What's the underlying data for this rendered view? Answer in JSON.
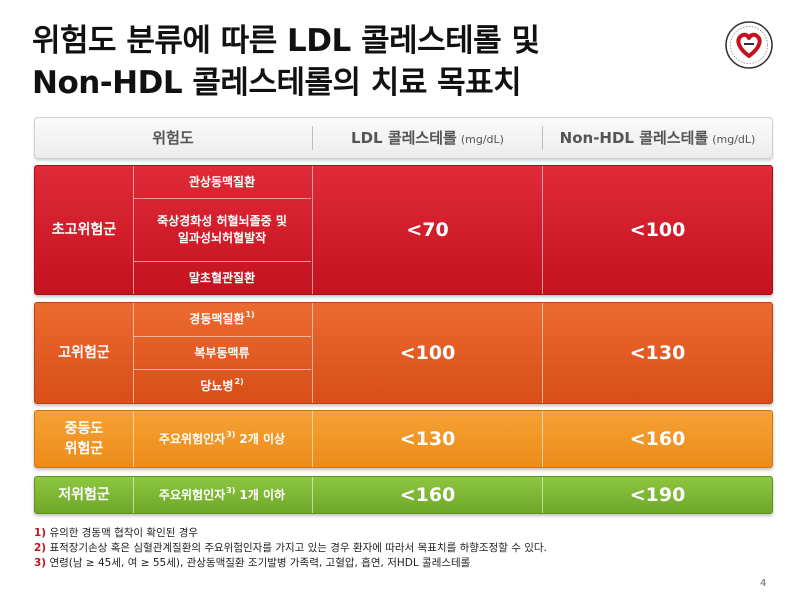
{
  "title": {
    "line1": "위험도 분류에 따른 LDL 콜레스테롤 및",
    "line2": "Non-HDL 콜레스테롤의 치료 목표치"
  },
  "logo": {
    "icon": "society-emblem-icon",
    "color": "#c4121e"
  },
  "header": {
    "col_risk": "위험도",
    "col_ldl": "LDL 콜레스테롤",
    "col_ldl_unit": "(mg/dL)",
    "col_nonhdl": "Non-HDL 콜레스테롤",
    "col_nonhdl_unit": "(mg/dL)"
  },
  "rows": {
    "very_high": {
      "category": "초고위험군",
      "conditions": [
        "관상동맥질환",
        "죽상경화성 허혈뇌졸중 및 일과성뇌허혈발작",
        "말초혈관질환"
      ],
      "ldl": "<70",
      "nonhdl": "<100",
      "color": "#d41e2b"
    },
    "high": {
      "category": "고위험군",
      "conditions": [
        "경동맥질환",
        "복부동맥류",
        "당뇨병"
      ],
      "condition_notes": [
        "1)",
        "",
        "2)"
      ],
      "ldl": "<100",
      "nonhdl": "<130",
      "color": "#e35b22"
    },
    "moderate": {
      "category": "중등도 위험군",
      "category_line1": "중등도",
      "category_line2": "위험군",
      "condition": "주요위험인자",
      "condition_note": "3)",
      "condition_tail": "2개 이상",
      "ldl": "<130",
      "nonhdl": "<160",
      "color": "#f29527"
    },
    "low": {
      "category": "저위험군",
      "condition": "주요위험인자",
      "condition_note": "3)",
      "condition_tail": "1개 이하",
      "ldl": "<160",
      "nonhdl": "<190",
      "color": "#7db835"
    }
  },
  "footnotes": [
    {
      "num": "1)",
      "text": "유의한 경동맥 협착이 확인된 경우"
    },
    {
      "num": "2)",
      "text": "표적장기손상 혹은 심혈관계질환의 주요위험인자를 가지고 있는 경우 환자에 따라서 목표치를 하향조정할 수 있다."
    },
    {
      "num": "3)",
      "text": "연령(남 ≥ 45세, 여 ≥ 55세), 관상동맥질환 조기발병 가족력, 고혈압, 흡연, 저HDL 콜레스테롤"
    }
  ],
  "page_number": "4"
}
